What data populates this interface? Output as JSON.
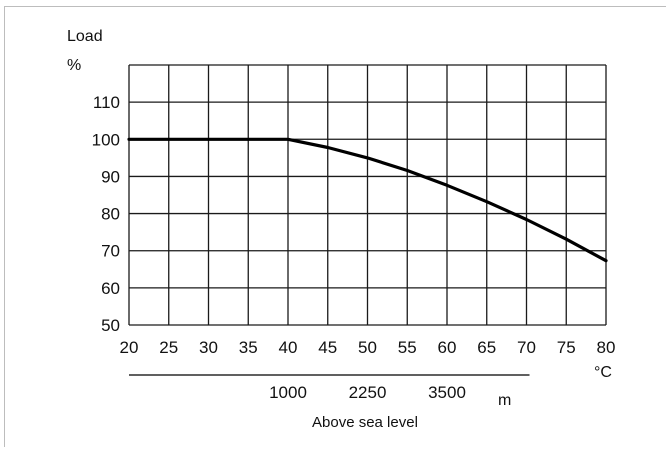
{
  "chart_data": {
    "type": "line",
    "title": "",
    "ylabel_line1": "Load",
    "ylabel_line2": "%",
    "x_unit": "°C",
    "altitude_unit": "m",
    "altitude_label": "Above sea level",
    "xlim": [
      20,
      80
    ],
    "ylim": [
      50,
      120
    ],
    "x_ticks": [
      20,
      25,
      30,
      35,
      40,
      45,
      50,
      55,
      60,
      65,
      70,
      75,
      80
    ],
    "y_ticks": [
      50,
      60,
      70,
      80,
      90,
      100,
      110
    ],
    "y_tick_labels": [
      "50",
      "60",
      "70",
      "80",
      "90",
      "100",
      "110"
    ],
    "x_tick_labels": [
      "20",
      "25",
      "30",
      "35",
      "40",
      "45",
      "50",
      "55",
      "60",
      "65",
      "70",
      "75",
      "80"
    ],
    "altitude_ticks": [
      {
        "label": "1000",
        "at_x": 40
      },
      {
        "label": "2250",
        "at_x": 50
      },
      {
        "label": "3500",
        "at_x": 60
      }
    ],
    "altitude_axis_span": [
      20,
      70
    ],
    "grid": true,
    "series": [
      {
        "name": "",
        "x": [
          20,
          40,
          45,
          50,
          55,
          60,
          65,
          70,
          75,
          80
        ],
        "y": [
          100,
          100,
          97.8,
          95,
          91.6,
          87.6,
          83.2,
          78.4,
          73.1,
          67.3
        ]
      }
    ]
  }
}
